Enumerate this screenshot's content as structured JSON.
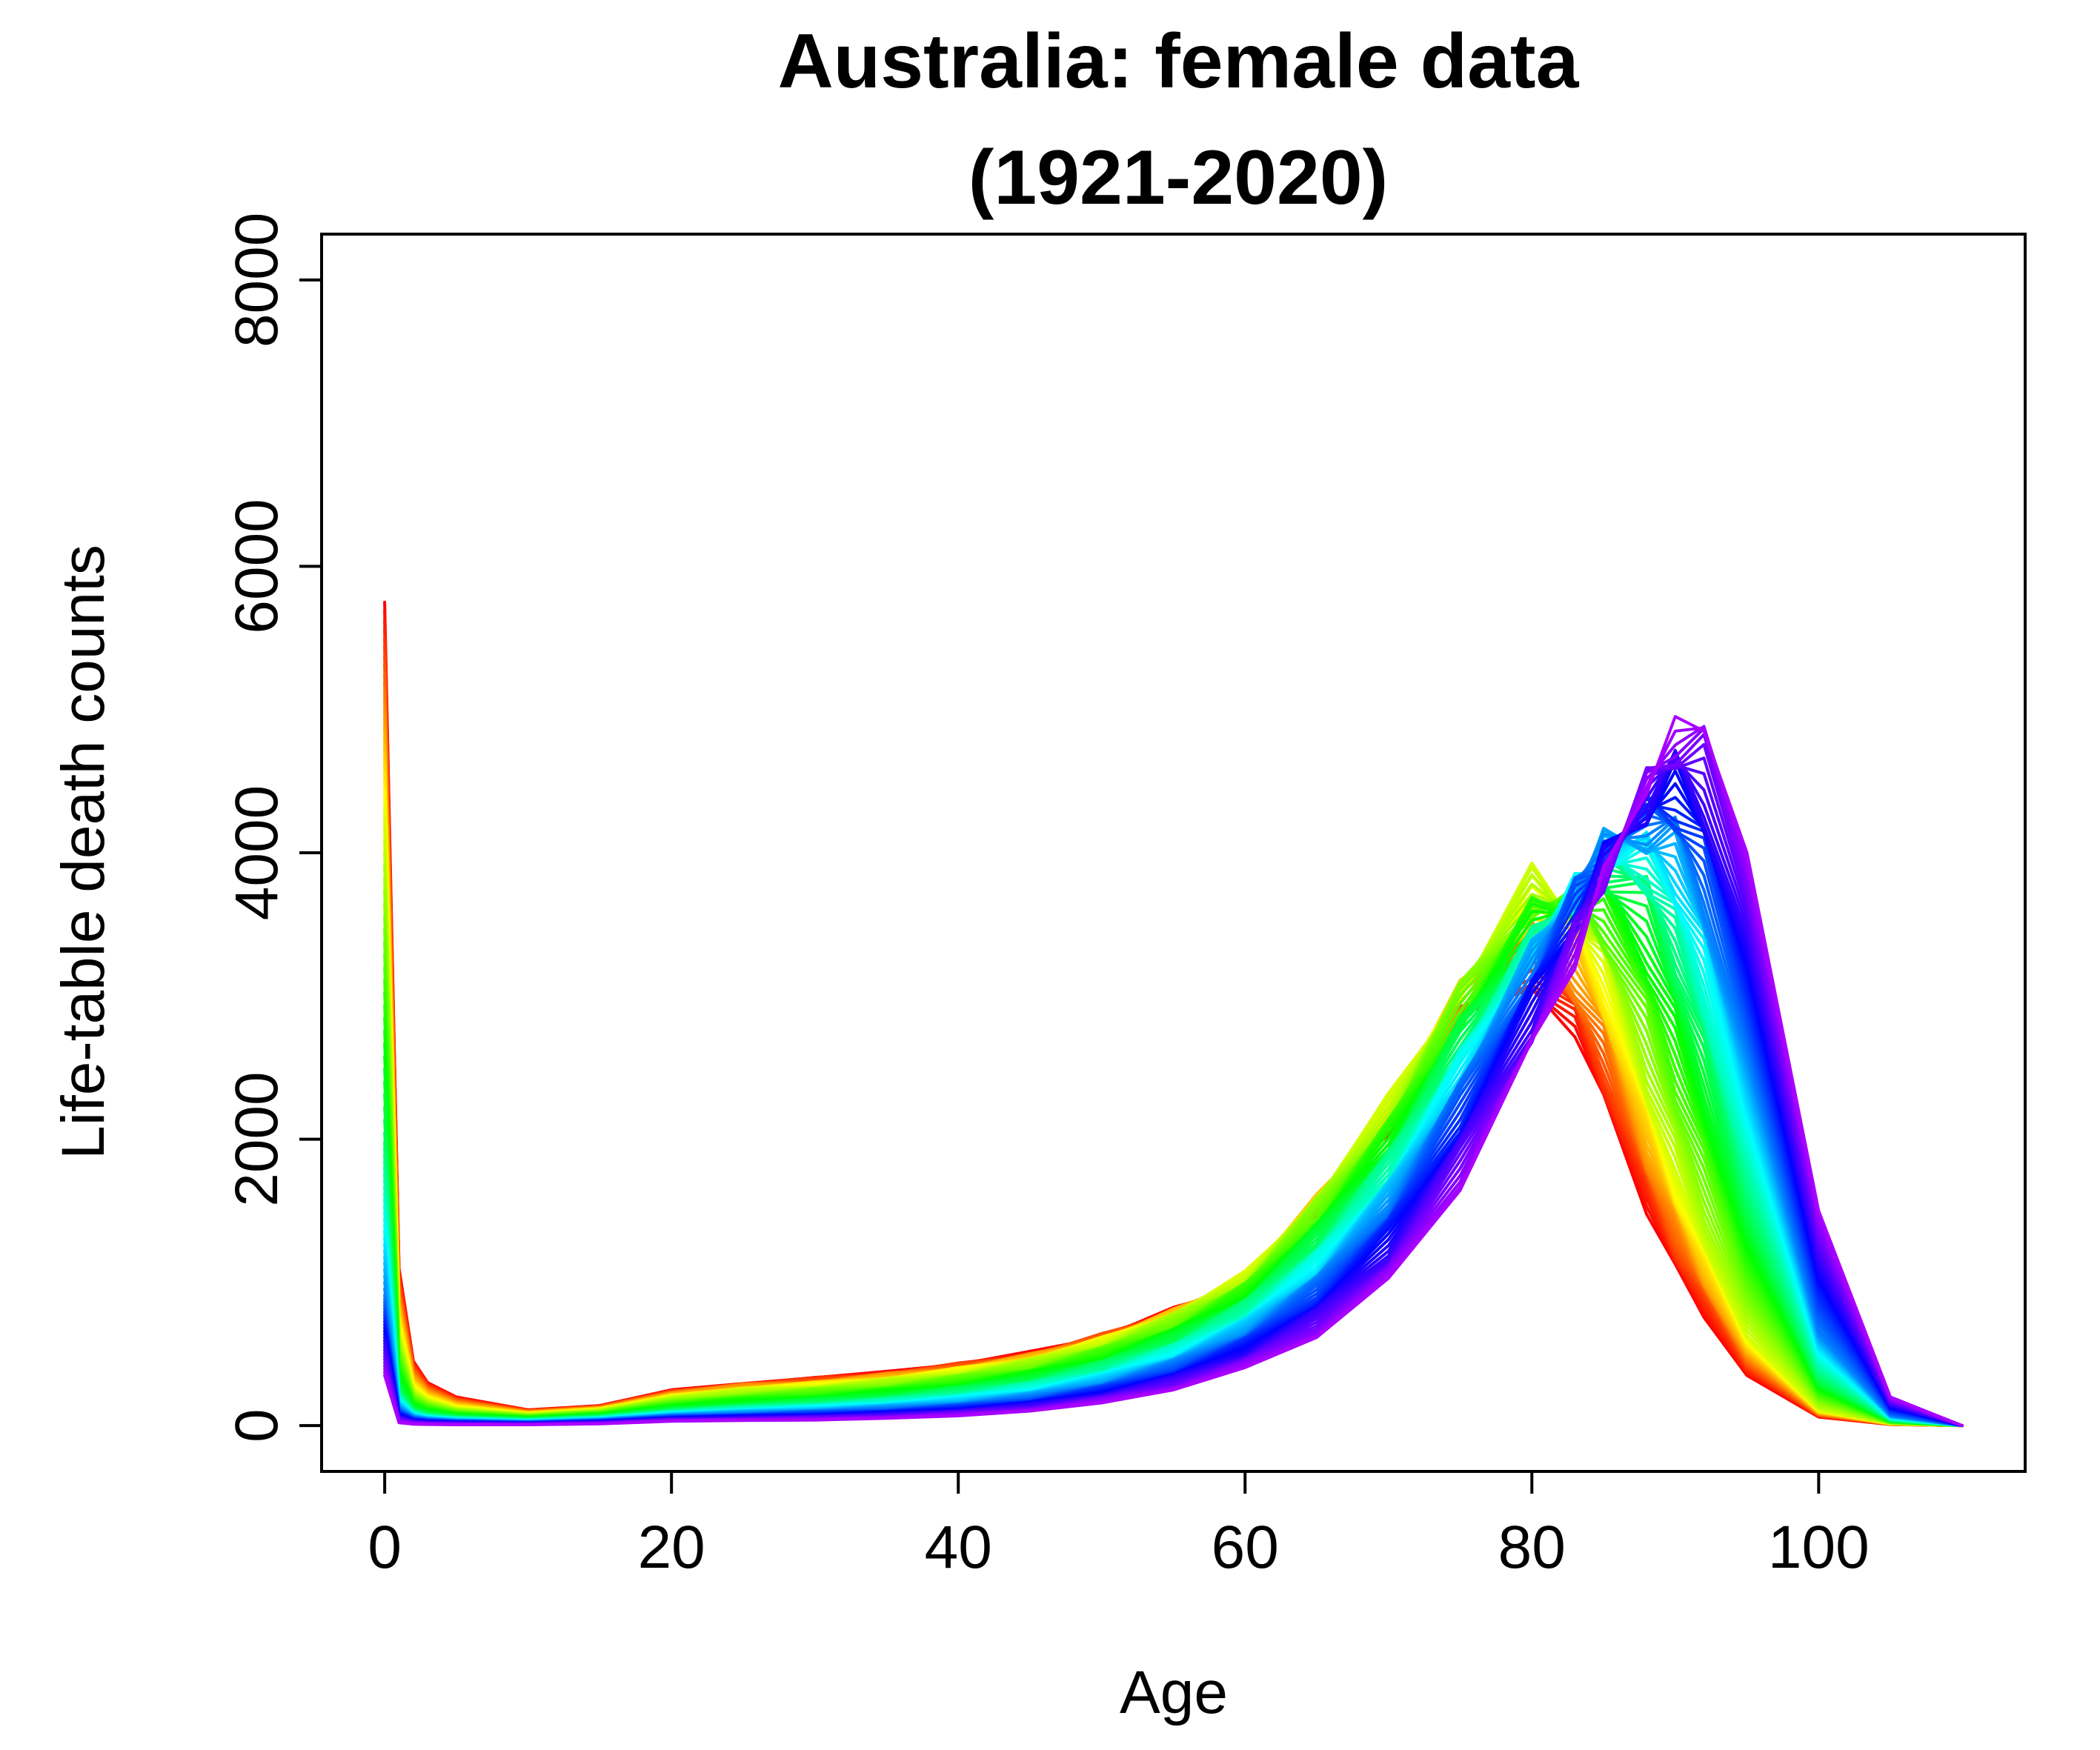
{
  "chart_data": {
    "type": "line",
    "title": [
      "Australia: female data",
      "(1921-2020)"
    ],
    "xlabel": "Age",
    "ylabel": "Life-table death counts",
    "xlim": [
      -4.4,
      114.4
    ],
    "ylim": [
      -320,
      8320
    ],
    "x_ticks": [
      0,
      20,
      40,
      60,
      80,
      100
    ],
    "y_ticks": [
      0,
      2000,
      4000,
      6000,
      8000
    ],
    "x_tick_labels": [
      "0",
      "20",
      "40",
      "60",
      "80",
      "100"
    ],
    "y_tick_labels": [
      "0",
      "2000",
      "4000",
      "6000",
      "8000"
    ],
    "grid": false,
    "legend": "none",
    "n_series": 100,
    "palette": "rainbow (red → violet)",
    "x": [
      0,
      1,
      2,
      3,
      5,
      10,
      15,
      20,
      25,
      30,
      35,
      40,
      45,
      50,
      55,
      60,
      65,
      70,
      75,
      80,
      83,
      85,
      88,
      90,
      92,
      95,
      100,
      105,
      110
    ],
    "series": [
      {
        "values": [
          5750,
          1100,
          450,
          300,
          200,
          110,
          140,
          250,
          300,
          330,
          380,
          430,
          510,
          630,
          800,
          1000,
          1500,
          2100,
          2800,
          3100,
          2700,
          2300,
          1500,
          1100,
          780,
          350,
          60,
          8,
          0
        ]
      },
      {
        "values": [
          4200,
          650,
          250,
          180,
          120,
          80,
          110,
          200,
          250,
          280,
          320,
          380,
          460,
          590,
          780,
          1050,
          1600,
          2250,
          3100,
          3800,
          3600,
          3200,
          2300,
          1750,
          1250,
          620,
          110,
          14,
          0
        ]
      },
      {
        "values": [
          2000,
          250,
          110,
          80,
          60,
          45,
          65,
          110,
          140,
          165,
          200,
          250,
          320,
          430,
          600,
          860,
          1300,
          1900,
          2700,
          3400,
          3700,
          3900,
          3700,
          3200,
          2600,
          1500,
          320,
          35,
          0
        ]
      },
      {
        "values": [
          900,
          120,
          60,
          45,
          35,
          25,
          40,
          70,
          85,
          100,
          120,
          150,
          200,
          290,
          430,
          650,
          1000,
          1550,
          2350,
          3250,
          3750,
          4050,
          4200,
          4150,
          3700,
          2600,
          650,
          70,
          0
        ]
      },
      {
        "values": [
          350,
          20,
          10,
          8,
          6,
          6,
          12,
          30,
          35,
          40,
          50,
          70,
          100,
          160,
          250,
          400,
          630,
          1000,
          1700,
          2600,
          3300,
          3800,
          4500,
          4900,
          4850,
          4000,
          1500,
          200,
          0
        ]
      }
    ]
  }
}
